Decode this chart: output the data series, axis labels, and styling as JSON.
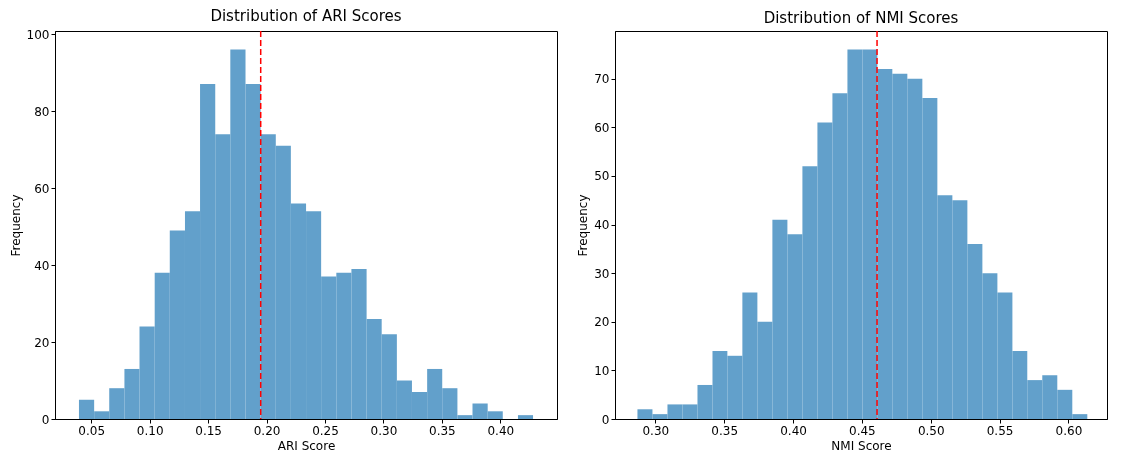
{
  "chart_data": [
    {
      "type": "histogram",
      "title": "Distribution of ARI Scores",
      "xlabel": "ARI Score",
      "ylabel": "Frequency",
      "color": "#62a0cb",
      "bins": [
        0.0395,
        0.0525,
        0.0654,
        0.0784,
        0.0913,
        0.1043,
        0.1172,
        0.1302,
        0.1431,
        0.1561,
        0.169,
        0.182,
        0.1949,
        0.2079,
        0.2208,
        0.2338,
        0.2467,
        0.2597,
        0.2726,
        0.2856,
        0.2985,
        0.3115,
        0.3244,
        0.3374,
        0.3503,
        0.3633,
        0.3762,
        0.3892,
        0.4021,
        0.4151,
        0.428
      ],
      "values": [
        5,
        2,
        8,
        13,
        24,
        38,
        49,
        54,
        87,
        74,
        96,
        87,
        74,
        71,
        56,
        54,
        37,
        38,
        39,
        26,
        22,
        10,
        7,
        13,
        8,
        1,
        4,
        2,
        0,
        1
      ],
      "xlim": [
        0.019,
        0.4485
      ],
      "ylim": [
        0,
        100.8
      ],
      "xticks": [
        {
          "value": 0.05,
          "label": "0.05"
        },
        {
          "value": 0.1,
          "label": "0.10"
        },
        {
          "value": 0.15,
          "label": "0.15"
        },
        {
          "value": 0.2,
          "label": "0.20"
        },
        {
          "value": 0.25,
          "label": "0.25"
        },
        {
          "value": 0.3,
          "label": "0.30"
        },
        {
          "value": 0.35,
          "label": "0.35"
        },
        {
          "value": 0.4,
          "label": "0.40"
        }
      ],
      "yticks": [
        0,
        20,
        40,
        60,
        80,
        100
      ],
      "ref_lines": [
        {
          "axis": "x",
          "value": 0.195,
          "color": "#ff0000",
          "line_style": "dashed"
        }
      ]
    },
    {
      "type": "histogram",
      "title": "Distribution of NMI Scores",
      "xlabel": "NMI Score",
      "ylabel": "Frequency",
      "color": "#62a0cb",
      "bins": [
        0.287,
        0.2979,
        0.3088,
        0.3197,
        0.3306,
        0.3415,
        0.3523,
        0.3632,
        0.3741,
        0.385,
        0.3959,
        0.4068,
        0.4177,
        0.4286,
        0.4395,
        0.4504,
        0.4612,
        0.4721,
        0.483,
        0.4939,
        0.5048,
        0.5157,
        0.5266,
        0.5375,
        0.5484,
        0.5593,
        0.5701,
        0.581,
        0.5919,
        0.6028,
        0.6137
      ],
      "values": [
        2,
        1,
        3,
        3,
        7,
        14,
        13,
        26,
        20,
        41,
        38,
        52,
        61,
        67,
        76,
        76,
        72,
        71,
        70,
        66,
        46,
        45,
        36,
        30,
        26,
        14,
        8,
        9,
        6,
        1
      ],
      "xlim": [
        0.2707,
        0.628
      ],
      "ylim": [
        0,
        79.8
      ],
      "xticks": [
        {
          "value": 0.3,
          "label": "0.30"
        },
        {
          "value": 0.35,
          "label": "0.35"
        },
        {
          "value": 0.4,
          "label": "0.40"
        },
        {
          "value": 0.45,
          "label": "0.45"
        },
        {
          "value": 0.5,
          "label": "0.50"
        },
        {
          "value": 0.55,
          "label": "0.55"
        },
        {
          "value": 0.6,
          "label": "0.60"
        }
      ],
      "yticks": [
        0,
        10,
        20,
        30,
        40,
        50,
        60,
        70
      ],
      "ref_lines": [
        {
          "axis": "x",
          "value": 0.461,
          "color": "#ff0000",
          "line_style": "dashed"
        }
      ]
    }
  ]
}
